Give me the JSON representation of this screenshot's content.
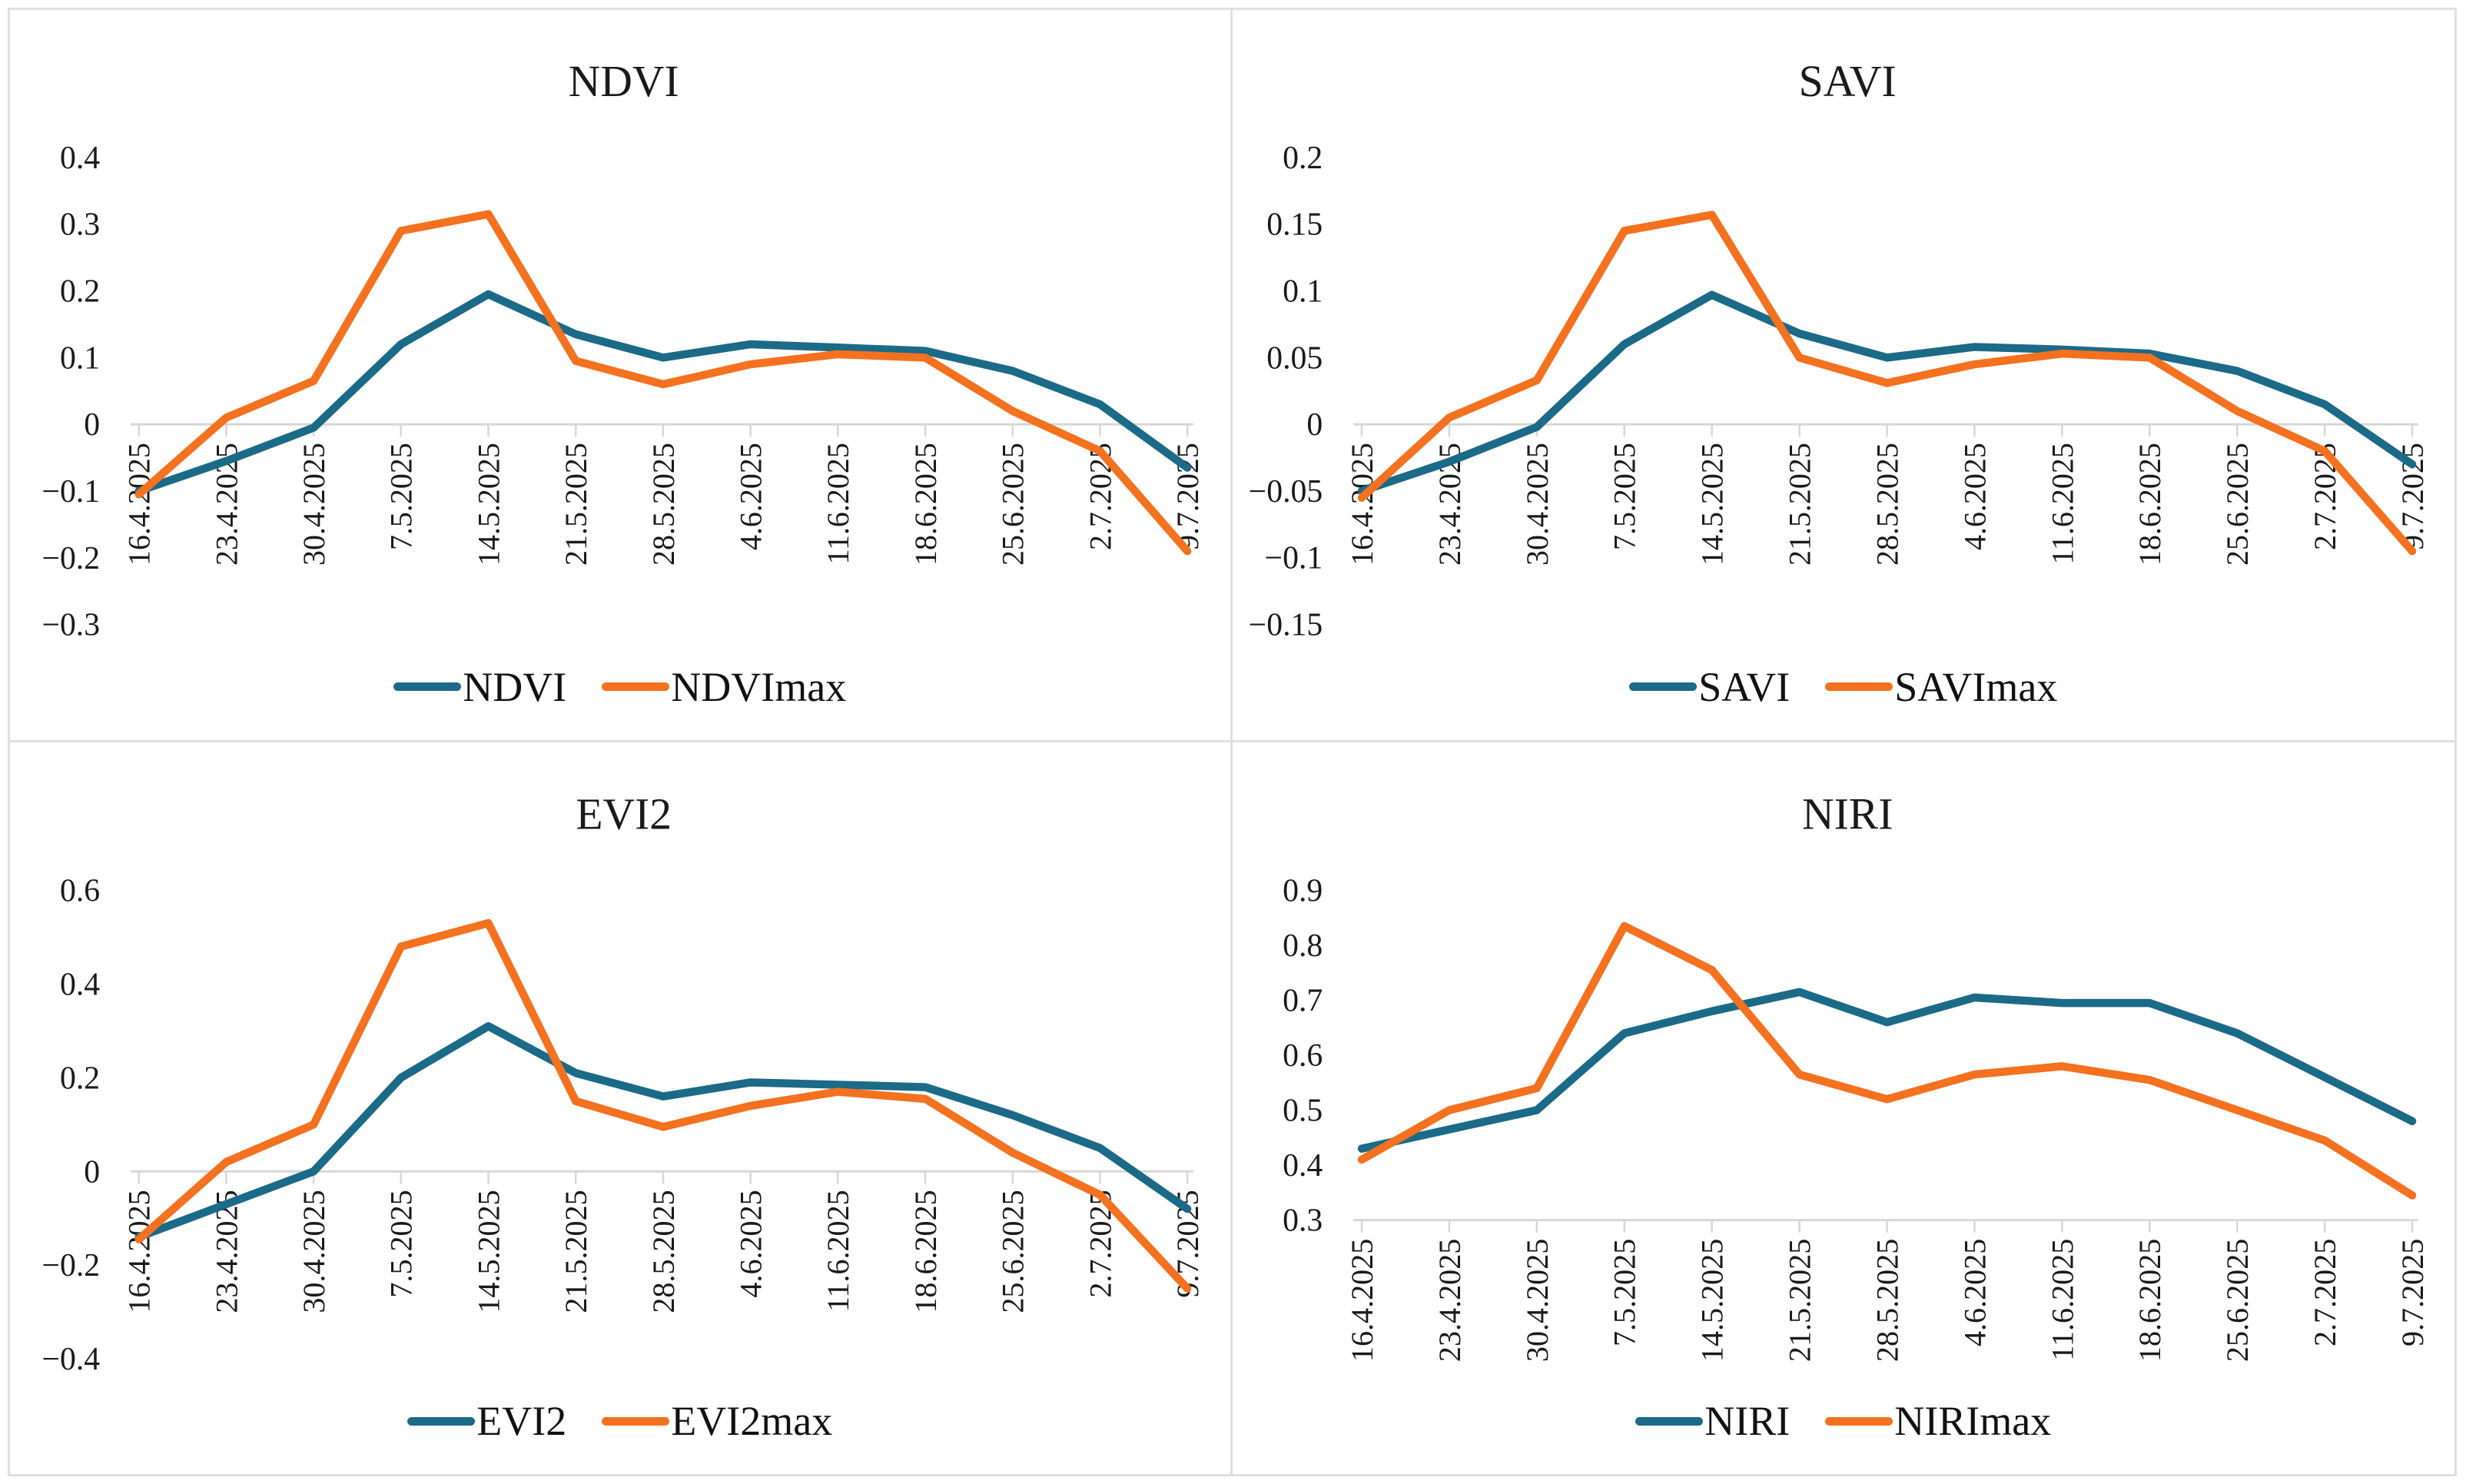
{
  "page": {
    "background": "#ffffff",
    "border_color": "#dfdfdf",
    "description_colors": {
      "series_blue": "#1b6a88",
      "series_orange": "#f4711f",
      "axis_gray": "#d6d6d6",
      "text": "#1a1a1a"
    }
  },
  "chart_data": [
    {
      "type": "line",
      "title": "NDVI",
      "categories": [
        "16.4.2025",
        "23.4.2025",
        "30.4.2025",
        "7.5.2025",
        "14.5.2025",
        "21.5.2025",
        "28.5.2025",
        "4.6.2025",
        "11.6.2025",
        "18.6.2025",
        "25.6.2025",
        "2.7.2025",
        "9.7.2025"
      ],
      "y_tick_labels": [
        "0.4",
        "0.3",
        "0.2",
        "0.1",
        "0",
        "−0.1",
        "−0.2",
        "−0.3"
      ],
      "ylim": [
        -0.3,
        0.4
      ],
      "axis_value": 0,
      "grid": false,
      "legend_position": "bottom",
      "series": [
        {
          "name": "NDVI",
          "color": "#1b6a88",
          "values": [
            -0.1,
            -0.055,
            -0.005,
            0.12,
            0.195,
            0.135,
            0.1,
            0.12,
            0.115,
            0.11,
            0.08,
            0.03,
            -0.065
          ]
        },
        {
          "name": "NDVImax",
          "color": "#f4711f",
          "values": [
            -0.105,
            0.01,
            0.065,
            0.29,
            0.315,
            0.095,
            0.06,
            0.09,
            0.105,
            0.1,
            0.02,
            -0.04,
            -0.19
          ]
        }
      ]
    },
    {
      "type": "line",
      "title": "SAVI",
      "categories": [
        "16.4.2025",
        "23.4.2025",
        "30.4.2025",
        "7.5.2025",
        "14.5.2025",
        "21.5.2025",
        "28.5.2025",
        "4.6.2025",
        "11.6.2025",
        "18.6.2025",
        "25.6.2025",
        "2.7.2025",
        "9.7.2025"
      ],
      "y_tick_labels": [
        "0.2",
        "0.15",
        "0.1",
        "0.05",
        "0",
        "−0.05",
        "−0.1",
        "−0.15"
      ],
      "ylim": [
        -0.15,
        0.2
      ],
      "axis_value": 0,
      "grid": false,
      "legend_position": "bottom",
      "series": [
        {
          "name": "SAVI",
          "color": "#1b6a88",
          "values": [
            -0.05,
            -0.028,
            -0.002,
            0.06,
            0.097,
            0.068,
            0.05,
            0.058,
            0.056,
            0.053,
            0.04,
            0.015,
            -0.03
          ]
        },
        {
          "name": "SAVImax",
          "color": "#f4711f",
          "values": [
            -0.055,
            0.005,
            0.033,
            0.145,
            0.157,
            0.05,
            0.031,
            0.045,
            0.053,
            0.05,
            0.01,
            -0.02,
            -0.095
          ]
        }
      ]
    },
    {
      "type": "line",
      "title": "EVI2",
      "categories": [
        "16.4.2025",
        "23.4.2025",
        "30.4.2025",
        "7.5.2025",
        "14.5.2025",
        "21.5.2025",
        "28.5.2025",
        "4.6.2025",
        "11.6.2025",
        "18.6.2025",
        "25.6.2025",
        "2.7.2025",
        "9.7.2025"
      ],
      "y_tick_labels": [
        "0.6",
        "0.4",
        "0.2",
        "0",
        "−0.2",
        "−0.4"
      ],
      "ylim": [
        -0.4,
        0.6
      ],
      "axis_value": 0,
      "grid": false,
      "legend_position": "bottom",
      "series": [
        {
          "name": "EVI2",
          "color": "#1b6a88",
          "values": [
            -0.14,
            -0.07,
            0.0,
            0.2,
            0.31,
            0.21,
            0.16,
            0.19,
            0.185,
            0.18,
            0.12,
            0.05,
            -0.08
          ]
        },
        {
          "name": "EVI2max",
          "color": "#f4711f",
          "values": [
            -0.145,
            0.02,
            0.1,
            0.48,
            0.53,
            0.15,
            0.095,
            0.14,
            0.17,
            0.155,
            0.04,
            -0.05,
            -0.25
          ]
        }
      ]
    },
    {
      "type": "line",
      "title": "NIRI",
      "categories": [
        "16.4.2025",
        "23.4.2025",
        "30.4.2025",
        "7.5.2025",
        "14.5.2025",
        "21.5.2025",
        "28.5.2025",
        "4.6.2025",
        "11.6.2025",
        "18.6.2025",
        "25.6.2025",
        "2.7.2025",
        "9.7.2025"
      ],
      "y_tick_labels": [
        "0.9",
        "0.8",
        "0.7",
        "0.6",
        "0.5",
        "0.4",
        "0.3"
      ],
      "ylim": [
        0.3,
        0.9
      ],
      "axis_value": 0.3,
      "grid": false,
      "legend_position": "bottom",
      "series": [
        {
          "name": "NIRI",
          "color": "#1b6a88",
          "values": [
            0.43,
            0.465,
            0.5,
            0.64,
            0.68,
            0.715,
            0.66,
            0.705,
            0.695,
            0.695,
            0.64,
            0.56,
            0.48
          ]
        },
        {
          "name": "NIRImax",
          "color": "#f4711f",
          "values": [
            0.41,
            0.5,
            0.54,
            0.835,
            0.755,
            0.565,
            0.52,
            0.565,
            0.58,
            0.555,
            0.5,
            0.445,
            0.345
          ]
        }
      ]
    }
  ]
}
